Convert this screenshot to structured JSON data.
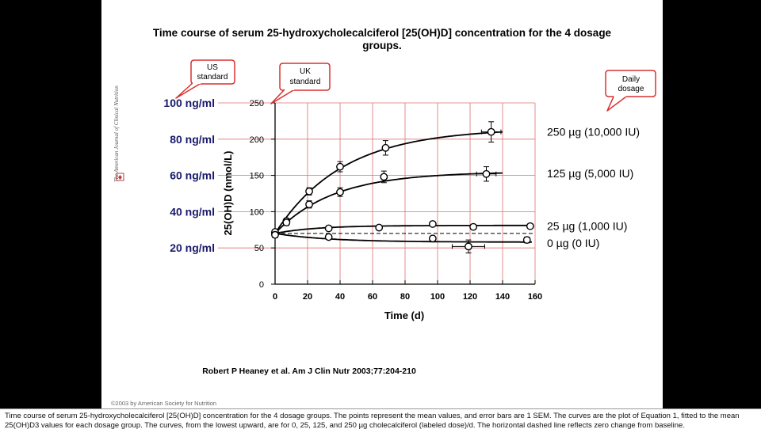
{
  "slide": {
    "journal_vertical": "The American Journal of Clinical Nutrition",
    "citation": "Robert P Heaney et al. Am J Clin Nutr 2003;77:204-210",
    "copyright": "©2003 by American Society for Nutrition"
  },
  "callouts": {
    "us": "US standard",
    "uk": "UK standard",
    "dosage": "Daily dosage"
  },
  "ngml_labels": [
    "100 ng/ml",
    "80 ng/ml",
    "60 ng/ml",
    "40 ng/ml",
    "20 ng/ml"
  ],
  "caption": {
    "line1": "Time course of serum 25-hydroxycholecalciferol [25(OH)D] concentration for the 4 dosage groups. The points represent the mean values, and error bars are 1 SEM. The curves are the plot of Equation 1, fitted to the mean",
    "line2": "25(OH)D3 values for each dosage group. The curves, from the lowest upward, are for 0, 25, 125, and 250 µg cholecalciferol (labeled dose)/d. The horizontal dashed line reflects zero change from baseline."
  },
  "colors": {
    "grid": "#e07070",
    "ngml_text": "#1a1a6e",
    "callout_border": "#d93030",
    "line": "#000000"
  },
  "chart_data": {
    "type": "line",
    "title": "Time course of serum 25-hydroxycholecalciferol [25(OH)D] concentration for the 4 dosage groups.",
    "xlabel": "Time (d)",
    "ylabel": "25(OH)D (nmol/L)",
    "xlim": [
      0,
      160
    ],
    "ylim": [
      0,
      250
    ],
    "xticks": [
      0,
      20,
      40,
      60,
      80,
      100,
      120,
      140,
      160
    ],
    "yticks": [
      0,
      50,
      100,
      150,
      200,
      250
    ],
    "grid": true,
    "baseline": 70,
    "series": [
      {
        "name": "250 µg (10,000 IU)",
        "A": 70,
        "B": 145,
        "k": 0.024,
        "points": [
          {
            "x": 0,
            "y": 71,
            "err": 3,
            "xerr": 0
          },
          {
            "x": 7,
            "y": 87,
            "err": 4,
            "xerr": 0
          },
          {
            "x": 21,
            "y": 128,
            "err": 5,
            "xerr": 0
          },
          {
            "x": 40,
            "y": 162,
            "err": 7,
            "xerr": 0
          },
          {
            "x": 68,
            "y": 188,
            "err": 10,
            "xerr": 0
          },
          {
            "x": 133,
            "y": 210,
            "err": 14,
            "xerr": 6
          }
        ]
      },
      {
        "name": "125 µg (5,000 IU)",
        "A": 70,
        "B": 85,
        "k": 0.028,
        "points": [
          {
            "x": 0,
            "y": 70,
            "err": 3,
            "xerr": 0
          },
          {
            "x": 7,
            "y": 85,
            "err": 4,
            "xerr": 0
          },
          {
            "x": 21,
            "y": 110,
            "err": 5,
            "xerr": 0
          },
          {
            "x": 40,
            "y": 127,
            "err": 6,
            "xerr": 0
          },
          {
            "x": 67,
            "y": 148,
            "err": 8,
            "xerr": 0
          },
          {
            "x": 130,
            "y": 152,
            "err": 10,
            "xerr": 6
          }
        ]
      },
      {
        "name": "25 µg (1,000 IU)",
        "A": 70,
        "B": 11,
        "k": 0.04,
        "points": [
          {
            "x": 0,
            "y": 72,
            "err": 3,
            "xerr": 0
          },
          {
            "x": 33,
            "y": 77,
            "err": 3,
            "xerr": 0
          },
          {
            "x": 64,
            "y": 78,
            "err": 3,
            "xerr": 0
          },
          {
            "x": 97,
            "y": 83,
            "err": 3,
            "xerr": 0
          },
          {
            "x": 122,
            "y": 79,
            "err": 3,
            "xerr": 0
          },
          {
            "x": 157,
            "y": 80,
            "err": 3,
            "xerr": 0
          }
        ]
      },
      {
        "name": "0 µg (0 IU)",
        "A": 70,
        "B": -12,
        "k": 0.03,
        "points": [
          {
            "x": 0,
            "y": 68,
            "err": 4,
            "xerr": 0
          },
          {
            "x": 33,
            "y": 65,
            "err": 3,
            "xerr": 0
          },
          {
            "x": 97,
            "y": 63,
            "err": 3,
            "xerr": 0
          },
          {
            "x": 119,
            "y": 52,
            "err": 9,
            "xerr": 10
          },
          {
            "x": 155,
            "y": 61,
            "err": 4,
            "xerr": 0
          }
        ]
      }
    ]
  }
}
